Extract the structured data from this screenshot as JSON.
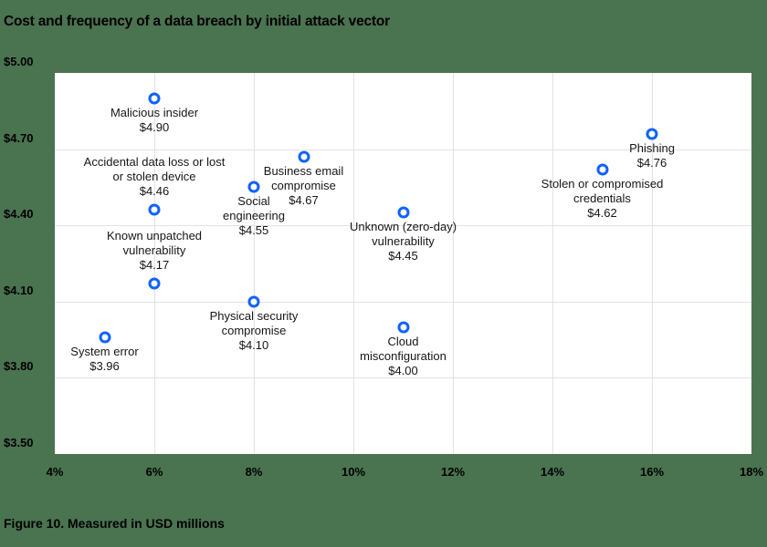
{
  "title": "Cost and frequency of a data breach by initial attack vector",
  "caption": "Figure 10. Measured in USD millions",
  "colors": {
    "background": "#4a7350",
    "plot_bg": "#ffffff",
    "marker": "#0f62fe",
    "grid": "#e2e2e2"
  },
  "chart_data": {
    "type": "scatter",
    "title": "Cost and frequency of a data breach by initial attack vector",
    "xlabel": "",
    "ylabel": "",
    "xlim": [
      4,
      18
    ],
    "ylim": [
      3.5,
      5.0
    ],
    "x_ticks": [
      "4%",
      "6%",
      "8%",
      "10%",
      "12%",
      "14%",
      "16%",
      "18%"
    ],
    "y_ticks": [
      "$5.00",
      "$4.70",
      "$4.40",
      "$4.10",
      "$3.80",
      "$3.50"
    ],
    "grid": true,
    "legend": "none",
    "points": [
      {
        "name": "Malicious insider",
        "lines": [
          "Malicious insider"
        ],
        "value_label": "$4.90",
        "x": 6,
        "y": 4.9,
        "label_pos": "below"
      },
      {
        "name": "Accidental data loss or lost or stolen device",
        "lines": [
          "Accidental data loss or lost",
          "or stolen device"
        ],
        "value_label": "$4.46",
        "x": 6,
        "y": 4.46,
        "label_pos": "above"
      },
      {
        "name": "Known unpatched vulnerability",
        "lines": [
          "Known unpatched",
          "vulnerability"
        ],
        "value_label": "$4.17",
        "x": 6,
        "y": 4.17,
        "label_pos": "above"
      },
      {
        "name": "System error",
        "lines": [
          "System error"
        ],
        "value_label": "$3.96",
        "x": 5,
        "y": 3.96,
        "label_pos": "below"
      },
      {
        "name": "Social engineering",
        "lines": [
          "Social",
          "engineering"
        ],
        "value_label": "$4.55",
        "x": 8,
        "y": 4.55,
        "label_pos": "below"
      },
      {
        "name": "Physical security compromise",
        "lines": [
          "Physical security",
          "compromise"
        ],
        "value_label": "$4.10",
        "x": 8,
        "y": 4.1,
        "label_pos": "below"
      },
      {
        "name": "Business email compromise",
        "lines": [
          "Business email",
          "compromise"
        ],
        "value_label": "$4.67",
        "x": 9,
        "y": 4.67,
        "label_pos": "below"
      },
      {
        "name": "Unknown (zero-day) vulnerability",
        "lines": [
          "Unknown (zero-day)",
          "vulnerability"
        ],
        "value_label": "$4.45",
        "x": 11,
        "y": 4.45,
        "label_pos": "below"
      },
      {
        "name": "Cloud misconfiguration",
        "lines": [
          "Cloud",
          "misconfiguration"
        ],
        "value_label": "$4.00",
        "x": 11,
        "y": 4.0,
        "label_pos": "below"
      },
      {
        "name": "Stolen or compromised credentials",
        "lines": [
          "Stolen or compromised",
          "credentials"
        ],
        "value_label": "$4.62",
        "x": 15,
        "y": 4.62,
        "label_pos": "below"
      },
      {
        "name": "Phishing",
        "lines": [
          "Phishing"
        ],
        "value_label": "$4.76",
        "x": 16,
        "y": 4.76,
        "label_pos": "below"
      }
    ]
  }
}
